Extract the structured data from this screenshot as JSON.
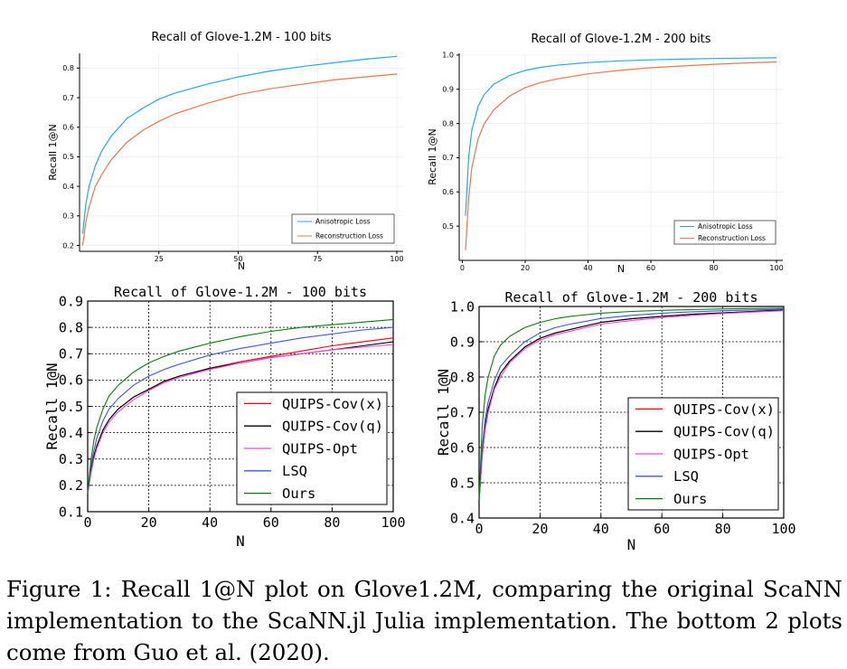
{
  "caption": "Figure 1: Recall 1@N plot on Glove1.2M, comparing the original ScaNN implementation to the ScaNN.jl Julia implementation. The bottom 2 plots come from Guo et al. (2020).",
  "colors": {
    "anisotropic": "#21a9e8",
    "reconstruction": "#e8774c",
    "quips_cov_x": "#e8000b",
    "quips_cov_q": "#000000",
    "quips_opt": "#e84be8",
    "lsq": "#3b55e0",
    "ours": "#0a7a0a"
  },
  "chart_data": [
    {
      "type": "line",
      "title": "Recall of Glove-1.2M - 100 bits",
      "xlabel": "N",
      "ylabel": "Recall 1@N",
      "xlim": [
        0,
        102
      ],
      "ylim": [
        0.18,
        0.85
      ],
      "xticks": [
        25,
        50,
        75,
        100
      ],
      "yticks": [
        0.2,
        0.3,
        0.4,
        0.5,
        0.6,
        0.7,
        0.8
      ],
      "tick_labels_x": [
        "25",
        "50",
        "75",
        "100"
      ],
      "tick_labels_y": [
        "0.2",
        "0.3",
        "0.4",
        "0.5",
        "0.6",
        "0.7",
        "0.8"
      ],
      "grid": true,
      "legend": "bottom-right",
      "x": [
        1,
        2,
        3,
        5,
        7,
        10,
        15,
        20,
        25,
        30,
        40,
        50,
        60,
        70,
        80,
        90,
        100
      ],
      "series": [
        {
          "name": "Anisotropic Loss",
          "color_key": "anisotropic",
          "values": [
            0.24,
            0.34,
            0.4,
            0.47,
            0.52,
            0.57,
            0.63,
            0.665,
            0.695,
            0.715,
            0.745,
            0.77,
            0.79,
            0.805,
            0.818,
            0.83,
            0.84
          ]
        },
        {
          "name": "Reconstruction Loss",
          "color_key": "reconstruction",
          "values": [
            0.2,
            0.28,
            0.33,
            0.4,
            0.44,
            0.49,
            0.55,
            0.59,
            0.62,
            0.645,
            0.68,
            0.71,
            0.73,
            0.745,
            0.76,
            0.77,
            0.78
          ]
        }
      ]
    },
    {
      "type": "line",
      "title": "Recall of Glove-1.2M - 200 bits",
      "xlabel": "N",
      "ylabel": "Recall 1@N",
      "xlim": [
        -1,
        102
      ],
      "ylim": [
        0.4,
        1.005
      ],
      "xticks": [
        0,
        20,
        40,
        60,
        80,
        100
      ],
      "yticks": [
        0.5,
        0.6,
        0.7,
        0.8,
        0.9,
        1.0
      ],
      "tick_labels_x": [
        "0",
        "20",
        "40",
        "60",
        "80",
        "100"
      ],
      "tick_labels_y": [
        "0.5",
        "0.6",
        "0.7",
        "0.8",
        "0.9",
        "1.0"
      ],
      "grid": true,
      "legend": "bottom-right",
      "x": [
        1,
        2,
        3,
        5,
        7,
        10,
        15,
        20,
        25,
        30,
        40,
        50,
        60,
        70,
        80,
        90,
        100
      ],
      "series": [
        {
          "name": "Anisotropic Loss",
          "color_key": "anisotropic",
          "values": [
            0.53,
            0.7,
            0.78,
            0.85,
            0.885,
            0.915,
            0.94,
            0.955,
            0.964,
            0.97,
            0.978,
            0.983,
            0.986,
            0.988,
            0.99,
            0.991,
            0.992
          ]
        },
        {
          "name": "Reconstruction Loss",
          "color_key": "reconstruction",
          "values": [
            0.43,
            0.58,
            0.67,
            0.755,
            0.8,
            0.84,
            0.88,
            0.905,
            0.92,
            0.93,
            0.945,
            0.955,
            0.963,
            0.968,
            0.973,
            0.977,
            0.98
          ]
        }
      ]
    },
    {
      "type": "line",
      "title": "Recall of Glove-1.2M - 100 bits",
      "xlabel": "N",
      "ylabel": "Recall 1@N",
      "xlim": [
        0,
        100
      ],
      "ylim": [
        0.1,
        0.9
      ],
      "xticks": [
        0,
        20,
        40,
        60,
        80,
        100
      ],
      "yticks": [
        0.1,
        0.2,
        0.3,
        0.4,
        0.5,
        0.6,
        0.7,
        0.8,
        0.9
      ],
      "tick_labels_x": [
        "0",
        "20",
        "40",
        "60",
        "80",
        "100"
      ],
      "tick_labels_y": [
        "0.1",
        "0.2",
        "0.3",
        "0.4",
        "0.5",
        "0.6",
        "0.7",
        "0.8",
        "0.9"
      ],
      "grid": true,
      "legend": "bottom-right",
      "x": [
        0,
        1,
        2,
        3,
        5,
        7,
        10,
        15,
        20,
        25,
        30,
        40,
        50,
        60,
        70,
        80,
        90,
        100
      ],
      "series": [
        {
          "name": "QUIPS-Cov(x)",
          "color_key": "quips_cov_x",
          "values": [
            0.17,
            0.25,
            0.31,
            0.35,
            0.41,
            0.45,
            0.49,
            0.535,
            0.565,
            0.595,
            0.615,
            0.645,
            0.67,
            0.69,
            0.71,
            0.73,
            0.745,
            0.76
          ]
        },
        {
          "name": "QUIPS-Cov(q)",
          "color_key": "quips_cov_q",
          "values": [
            0.17,
            0.25,
            0.31,
            0.35,
            0.41,
            0.45,
            0.49,
            0.535,
            0.565,
            0.595,
            0.615,
            0.645,
            0.665,
            0.685,
            0.7,
            0.715,
            0.73,
            0.745
          ]
        },
        {
          "name": "QUIPS-Opt",
          "color_key": "quips_opt",
          "values": [
            0.17,
            0.24,
            0.3,
            0.34,
            0.4,
            0.44,
            0.48,
            0.525,
            0.56,
            0.59,
            0.61,
            0.64,
            0.665,
            0.685,
            0.7,
            0.715,
            0.725,
            0.735
          ]
        },
        {
          "name": "LSQ",
          "color_key": "lsq",
          "values": [
            0.17,
            0.27,
            0.33,
            0.38,
            0.445,
            0.49,
            0.53,
            0.58,
            0.615,
            0.64,
            0.66,
            0.695,
            0.72,
            0.74,
            0.76,
            0.775,
            0.79,
            0.8
          ]
        },
        {
          "name": "Ours",
          "color_key": "ours",
          "values": [
            0.17,
            0.29,
            0.37,
            0.42,
            0.49,
            0.54,
            0.58,
            0.63,
            0.665,
            0.69,
            0.71,
            0.74,
            0.765,
            0.785,
            0.8,
            0.81,
            0.82,
            0.83
          ]
        }
      ]
    },
    {
      "type": "line",
      "title": "Recall of Glove-1.2M - 200 bits",
      "xlabel": "N",
      "ylabel": "Recall 1@N",
      "xlim": [
        0,
        100
      ],
      "ylim": [
        0.4,
        1.0
      ],
      "xticks": [
        0,
        20,
        40,
        60,
        80,
        100
      ],
      "yticks": [
        0.4,
        0.5,
        0.6,
        0.7,
        0.8,
        0.9,
        1.0
      ],
      "tick_labels_x": [
        "0",
        "20",
        "40",
        "60",
        "80",
        "100"
      ],
      "tick_labels_y": [
        "0.4",
        "0.5",
        "0.6",
        "0.7",
        "0.8",
        "0.9",
        "1.0"
      ],
      "grid": true,
      "legend": "bottom-right",
      "x": [
        0,
        1,
        2,
        3,
        5,
        7,
        10,
        15,
        20,
        25,
        30,
        40,
        50,
        60,
        70,
        80,
        90,
        100
      ],
      "series": [
        {
          "name": "QUIPS-Cov(x)",
          "color_key": "quips_cov_x",
          "values": [
            0.45,
            0.58,
            0.66,
            0.71,
            0.77,
            0.81,
            0.845,
            0.885,
            0.91,
            0.925,
            0.935,
            0.955,
            0.965,
            0.972,
            0.978,
            0.982,
            0.986,
            0.99
          ]
        },
        {
          "name": "QUIPS-Cov(q)",
          "color_key": "quips_cov_q",
          "values": [
            0.45,
            0.58,
            0.66,
            0.71,
            0.77,
            0.81,
            0.845,
            0.885,
            0.91,
            0.925,
            0.935,
            0.955,
            0.965,
            0.972,
            0.978,
            0.982,
            0.986,
            0.99
          ]
        },
        {
          "name": "QUIPS-Opt",
          "color_key": "quips_opt",
          "values": [
            0.45,
            0.57,
            0.65,
            0.7,
            0.765,
            0.8,
            0.84,
            0.88,
            0.905,
            0.92,
            0.93,
            0.95,
            0.96,
            0.968,
            0.975,
            0.98,
            0.984,
            0.988
          ]
        },
        {
          "name": "LSQ",
          "color_key": "lsq",
          "values": [
            0.45,
            0.6,
            0.68,
            0.73,
            0.79,
            0.83,
            0.86,
            0.9,
            0.925,
            0.94,
            0.95,
            0.966,
            0.975,
            0.981,
            0.985,
            0.988,
            0.99,
            0.992
          ]
        },
        {
          "name": "Ours",
          "color_key": "ours",
          "values": [
            0.45,
            0.66,
            0.75,
            0.8,
            0.86,
            0.89,
            0.915,
            0.94,
            0.955,
            0.965,
            0.972,
            0.981,
            0.986,
            0.989,
            0.991,
            0.993,
            0.994,
            0.995
          ]
        }
      ]
    }
  ]
}
